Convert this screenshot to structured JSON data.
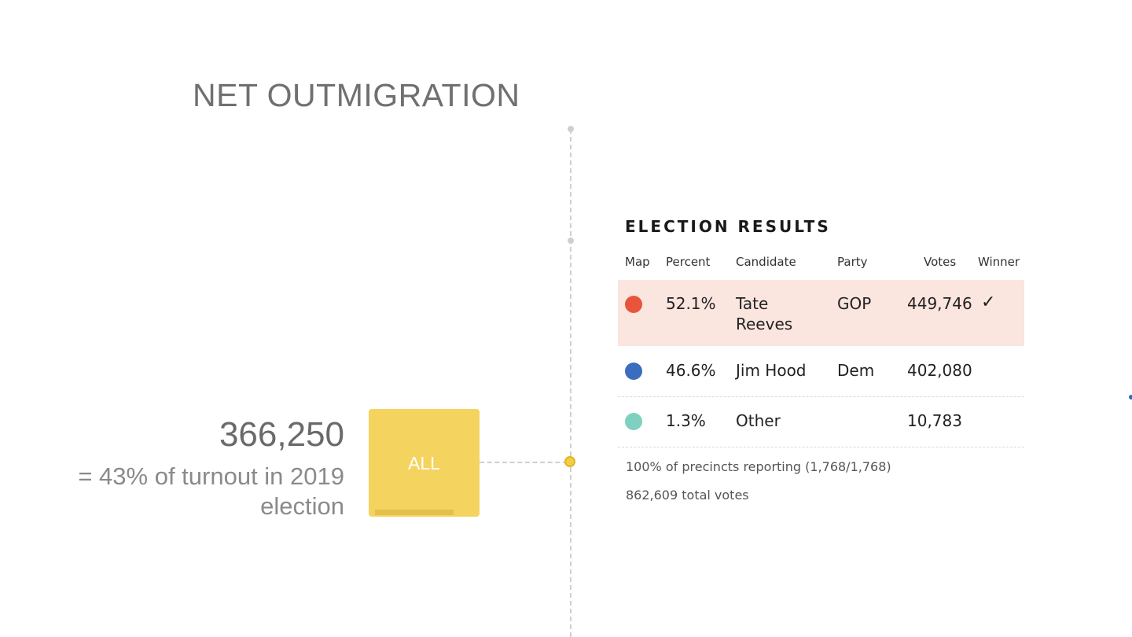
{
  "slide": {
    "title": "NET OUTMIGRATION",
    "stat_value": "366,250",
    "stat_caption": "= 43% of turnout in 2019 election",
    "button_label": "ALL"
  },
  "results": {
    "title": "ELECTION RESULTS",
    "columns": [
      "Map",
      "Percent",
      "Candidate",
      "Party",
      "Votes",
      "Winner"
    ],
    "rows": [
      {
        "color": "#e8553a",
        "percent": "52.1%",
        "candidate": "Tate Reeves",
        "party": "GOP",
        "votes": "449,746",
        "winner": "✓"
      },
      {
        "color": "#3a6dbf",
        "percent": "46.6%",
        "candidate": "Jim Hood",
        "party": "Dem",
        "votes": "402,080",
        "winner": ""
      },
      {
        "color": "#7fd0bf",
        "percent": "1.3%",
        "candidate": "Other",
        "party": "",
        "votes": "10,783",
        "winner": ""
      }
    ],
    "precincts": "100% of precincts reporting (1,768/1,768)",
    "total_votes": "862,609 total votes"
  },
  "colors": {
    "accent_yellow": "#f5d35f",
    "winner_highlight": "#fbe5df",
    "gop": "#e8553a",
    "dem": "#3a6dbf",
    "other": "#7fd0bf"
  }
}
